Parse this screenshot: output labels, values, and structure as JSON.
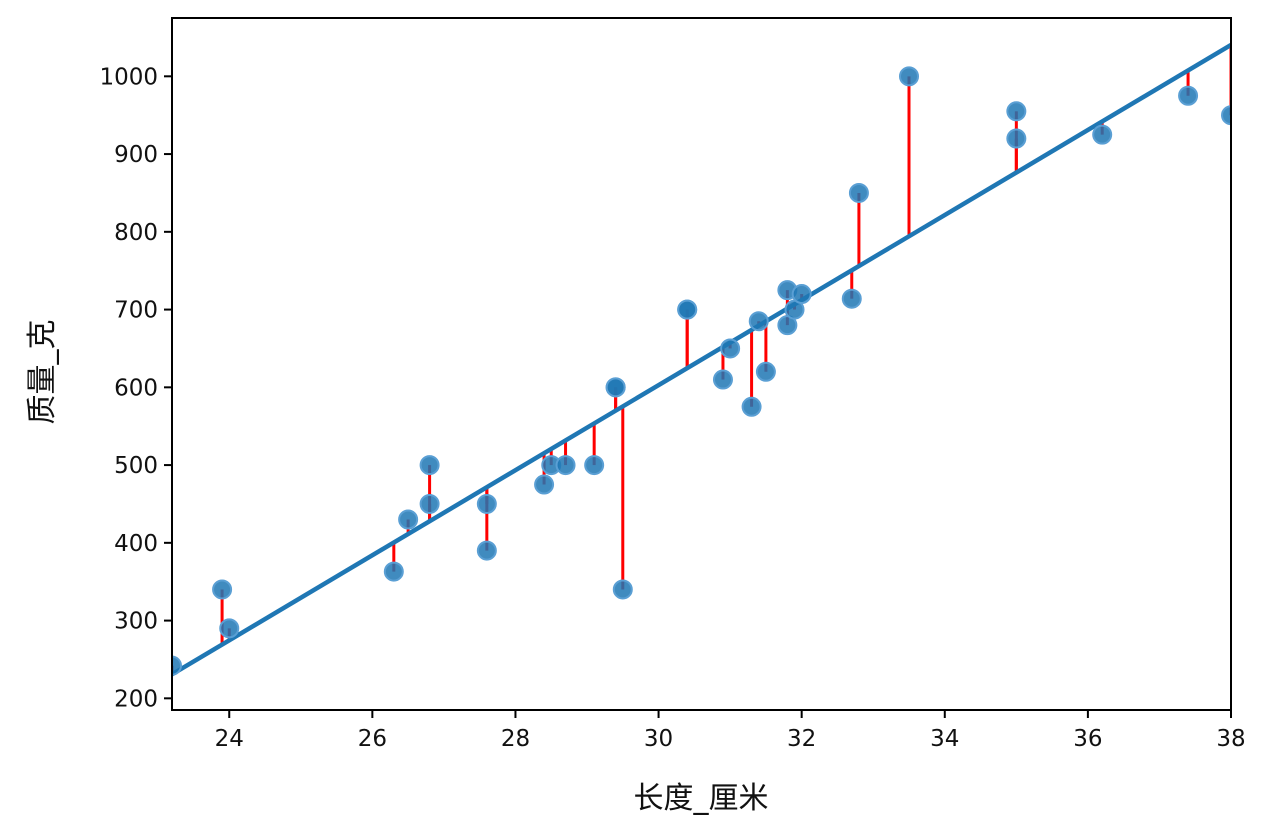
{
  "chart_data": {
    "type": "scatter",
    "xlabel": "长度_厘米",
    "ylabel": "质量_克",
    "xlim": [
      23.2,
      38.0
    ],
    "ylim": [
      185,
      1075
    ],
    "x_ticks": [
      24,
      26,
      28,
      30,
      32,
      34,
      36,
      38
    ],
    "y_ticks": [
      200,
      300,
      400,
      500,
      600,
      700,
      800,
      900,
      1000
    ],
    "grid": false,
    "legend": "none",
    "fit_line": {
      "slope": 54.7,
      "intercept": -1038.2
    },
    "series": [
      {
        "points": [
          {
            "x": 23.2,
            "y": 242
          },
          {
            "x": 23.9,
            "y": 340
          },
          {
            "x": 24.0,
            "y": 290
          },
          {
            "x": 26.3,
            "y": 363
          },
          {
            "x": 26.5,
            "y": 430
          },
          {
            "x": 26.8,
            "y": 450
          },
          {
            "x": 26.8,
            "y": 500
          },
          {
            "x": 27.6,
            "y": 390
          },
          {
            "x": 27.6,
            "y": 450
          },
          {
            "x": 28.4,
            "y": 475
          },
          {
            "x": 28.5,
            "y": 500
          },
          {
            "x": 28.7,
            "y": 500
          },
          {
            "x": 29.1,
            "y": 500
          },
          {
            "x": 29.4,
            "y": 600
          },
          {
            "x": 29.4,
            "y": 600
          },
          {
            "x": 29.5,
            "y": 340
          },
          {
            "x": 30.4,
            "y": 700
          },
          {
            "x": 30.4,
            "y": 700
          },
          {
            "x": 30.9,
            "y": 610
          },
          {
            "x": 31.0,
            "y": 650
          },
          {
            "x": 31.3,
            "y": 575
          },
          {
            "x": 31.4,
            "y": 685
          },
          {
            "x": 31.5,
            "y": 620
          },
          {
            "x": 31.8,
            "y": 680
          },
          {
            "x": 31.8,
            "y": 725
          },
          {
            "x": 31.9,
            "y": 700
          },
          {
            "x": 32.0,
            "y": 720
          },
          {
            "x": 32.7,
            "y": 714
          },
          {
            "x": 32.8,
            "y": 850
          },
          {
            "x": 33.5,
            "y": 1000
          },
          {
            "x": 35.0,
            "y": 920
          },
          {
            "x": 35.0,
            "y": 955
          },
          {
            "x": 36.2,
            "y": 925
          },
          {
            "x": 37.4,
            "y": 975
          },
          {
            "x": 38.0,
            "y": 950
          }
        ]
      }
    ],
    "colors": {
      "points": "#1f77b4",
      "fit_line": "#1f77b4",
      "residual": "#ff0000",
      "axes": "#000000"
    }
  }
}
